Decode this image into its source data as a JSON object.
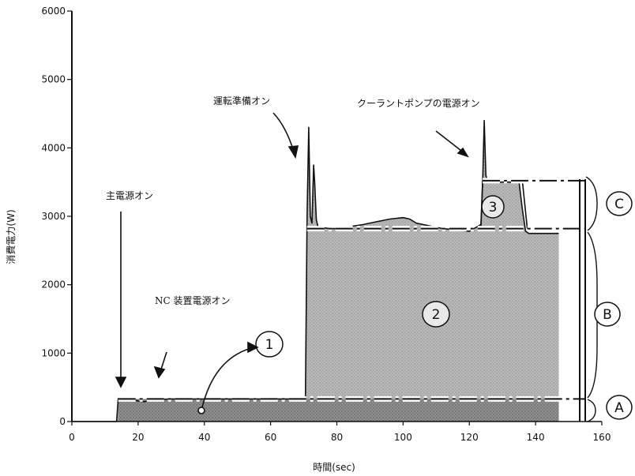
{
  "chart_data": {
    "type": "area",
    "xlabel": "時間(sec)",
    "ylabel": "消費電力(W)",
    "xlim": [
      0,
      160
    ],
    "ylim": [
      0,
      6000
    ],
    "x_ticks": [
      0,
      20,
      40,
      60,
      80,
      100,
      120,
      140,
      160
    ],
    "y_ticks": [
      0,
      1000,
      2000,
      3000,
      4000,
      5000,
      6000
    ],
    "grid": false,
    "series": [
      {
        "x": [
          0,
          13.5,
          14,
          18,
          20,
          22,
          24,
          30,
          40,
          50,
          60,
          70.5,
          71.0,
          71.5,
          72,
          72.5,
          73,
          73.3,
          73.8,
          74.3,
          75,
          76,
          78,
          80,
          84,
          88,
          92,
          96,
          100,
          102,
          104,
          108,
          112,
          116,
          120,
          123.5,
          124,
          124.5,
          125,
          125.5,
          126,
          126.5,
          128,
          130,
          132,
          134,
          135,
          136,
          137,
          138,
          140,
          145,
          147
        ],
        "y": [
          0,
          0,
          340,
          330,
          300,
          290,
          320,
          330,
          330,
          330,
          330,
          330,
          3000,
          4300,
          3000,
          2900,
          3750,
          3500,
          2950,
          2850,
          2850,
          2830,
          2820,
          2820,
          2850,
          2880,
          2920,
          2960,
          2980,
          2960,
          2900,
          2860,
          2820,
          2800,
          2780,
          2880,
          3450,
          4400,
          3600,
          3500,
          3500,
          3500,
          3500,
          3500,
          3500,
          3500,
          3500,
          3100,
          2780,
          2750,
          2750,
          2750,
          2750
        ]
      }
    ],
    "reference_lines": [
      {
        "y": 330,
        "x_start": 14,
        "x_end": 155,
        "label": "A"
      },
      {
        "y": 2820,
        "x_start": 71,
        "x_end": 155,
        "label": "C"
      },
      {
        "y": 3520,
        "x_start": 124,
        "x_end": 155,
        "label": "C"
      }
    ],
    "annotations": [
      {
        "text": "主電源オン"
      },
      {
        "text": "NC 装置電源オン"
      },
      {
        "text": "運転準備オン"
      },
      {
        "text": "クーラントポンプの電源オン"
      }
    ],
    "circle_labels": [
      "1",
      "2",
      "3",
      "A",
      "B",
      "C"
    ],
    "colors": {
      "fill": "#c8c8c8",
      "fill_dark": "#9a9a9a",
      "line": "#111111"
    }
  }
}
